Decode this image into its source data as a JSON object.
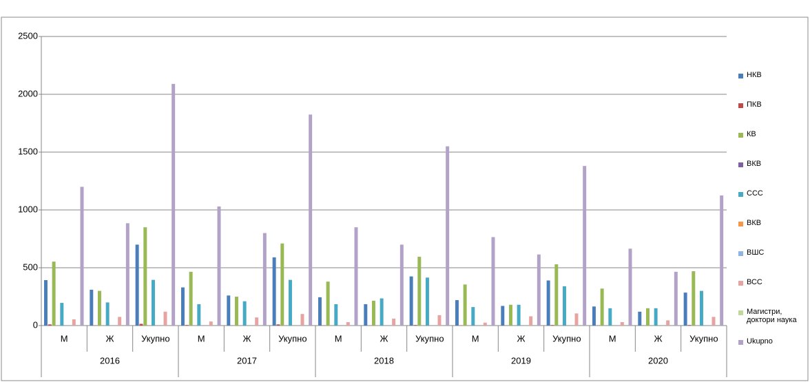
{
  "chart_data": {
    "type": "bar",
    "categories": [
      "М",
      "Ж",
      "Укупно",
      "М",
      "Ж",
      "Укупно",
      "М",
      "Ж",
      "Укупно",
      "М",
      "Ж",
      "Укупно",
      "М",
      "Ж",
      "Укупно"
    ],
    "groups": [
      "2016",
      "2017",
      "2018",
      "2019",
      "2020"
    ],
    "ylim": [
      0,
      2500
    ],
    "yticks": [
      0,
      500,
      1000,
      1500,
      2000,
      2500
    ],
    "grid": true,
    "legend": "right",
    "series": [
      {
        "name": "НКВ",
        "color": "#4a7ebb",
        "values": [
          393,
          310,
          700,
          330,
          260,
          590,
          245,
          185,
          425,
          220,
          170,
          390,
          165,
          120,
          285
        ]
      },
      {
        "name": "ПКВ",
        "color": "#be4b48",
        "values": [
          10,
          2,
          15,
          5,
          2,
          10,
          2,
          1,
          5,
          2,
          1,
          5,
          2,
          1,
          5
        ]
      },
      {
        "name": "КВ",
        "color": "#98b954",
        "values": [
          553,
          300,
          850,
          465,
          250,
          710,
          380,
          215,
          595,
          355,
          180,
          530,
          320,
          150,
          470
        ]
      },
      {
        "name": "ВКВ",
        "color": "#7d60a0",
        "values": [
          0,
          0,
          0,
          0,
          0,
          0,
          0,
          0,
          0,
          0,
          0,
          0,
          0,
          0,
          0
        ]
      },
      {
        "name": "ССС",
        "color": "#46aac5",
        "values": [
          196,
          200,
          395,
          185,
          210,
          395,
          185,
          235,
          415,
          160,
          180,
          340,
          150,
          150,
          300
        ]
      },
      {
        "name": "ВКВ",
        "color": "#f79646",
        "values": [
          0,
          0,
          0,
          0,
          0,
          0,
          0,
          0,
          0,
          0,
          0,
          0,
          0,
          0,
          0
        ]
      },
      {
        "name": "ВШС",
        "color": "#8fb3e2",
        "values": [
          0,
          0,
          0,
          0,
          0,
          0,
          0,
          0,
          0,
          0,
          0,
          0,
          0,
          0,
          0
        ]
      },
      {
        "name": "ВСС",
        "color": "#e6a3a2",
        "values": [
          54,
          75,
          120,
          35,
          70,
          100,
          30,
          60,
          90,
          25,
          80,
          105,
          30,
          45,
          75
        ]
      },
      {
        "name": "Магистри, доктори наука",
        "color": "#c3d69b",
        "values": [
          0,
          0,
          0,
          0,
          0,
          0,
          0,
          0,
          0,
          0,
          0,
          0,
          0,
          0,
          0
        ]
      },
      {
        "name": "Ukupno",
        "color": "#b3a2c7",
        "values": [
          1200,
          885,
          2090,
          1030,
          800,
          1825,
          850,
          700,
          1550,
          765,
          615,
          1380,
          665,
          465,
          1125
        ]
      }
    ]
  }
}
